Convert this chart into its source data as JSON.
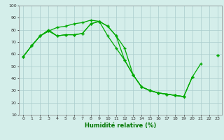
{
  "x": [
    0,
    1,
    2,
    3,
    4,
    5,
    6,
    7,
    8,
    9,
    10,
    11,
    12,
    13,
    14,
    15,
    16,
    17,
    18,
    19,
    20,
    21,
    22,
    23
  ],
  "line1": [
    58,
    67,
    75,
    79,
    82,
    83,
    85,
    86,
    88,
    87,
    83,
    75,
    65,
    43,
    33,
    30,
    28,
    27,
    26,
    25,
    null,
    null,
    null,
    59
  ],
  "line2": [
    58,
    67,
    75,
    80,
    75,
    76,
    76,
    77,
    85,
    87,
    83,
    75,
    55,
    43,
    33,
    30,
    28,
    27,
    26,
    25,
    41,
    52,
    null,
    null
  ],
  "line3": [
    58,
    67,
    75,
    79,
    75,
    76,
    76,
    77,
    85,
    87,
    75,
    65,
    55,
    43,
    33,
    30,
    28,
    27,
    26,
    25,
    41,
    null,
    null,
    59
  ],
  "background_color": "#d4eeea",
  "grid_color": "#aacccc",
  "line_color": "#00aa00",
  "marker": "+",
  "xlabel": "Humidité relative (%)",
  "xlabel_color": "#007700",
  "ylim": [
    10,
    100
  ],
  "xlim_min": -0.5,
  "xlim_max": 23.5,
  "yticks": [
    10,
    20,
    30,
    40,
    50,
    60,
    70,
    80,
    90,
    100
  ],
  "xticks": [
    0,
    1,
    2,
    3,
    4,
    5,
    6,
    7,
    8,
    9,
    10,
    11,
    12,
    13,
    14,
    15,
    16,
    17,
    18,
    19,
    20,
    21,
    22,
    23
  ]
}
